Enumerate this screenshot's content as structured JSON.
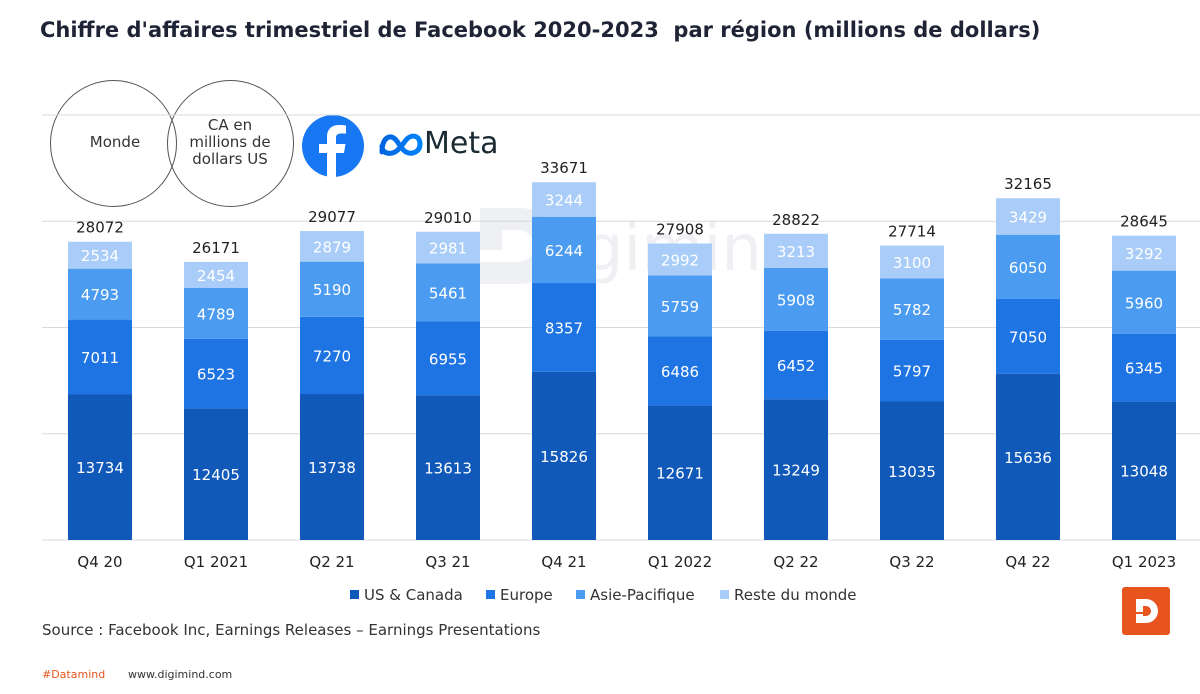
{
  "title": "Chiffre d'affaires trimestriel de Facebook 2020-2023  par région (millions de dollars)",
  "circles": {
    "left_label": "Monde",
    "right_label": [
      "CA en",
      "millions de",
      "dollars US"
    ]
  },
  "logos": {
    "facebook_icon": "facebook-f-icon",
    "meta_icon": "meta-infinity-icon",
    "meta_word": "Meta",
    "watermark": "digimind"
  },
  "source": "Source :  Facebook Inc, Earnings Releases – Earnings Presentations",
  "footer": {
    "hashtag": "#Datamind",
    "website": "www.digimind.com",
    "brand_icon": "digimind-logo-icon"
  },
  "chart_data": {
    "type": "bar",
    "stacked": true,
    "categories": [
      "Q4 20",
      "Q1 2021",
      "Q2 21",
      "Q3 21",
      "Q4 21",
      "Q1 2022",
      "Q2 22",
      "Q3 22",
      "Q4 22",
      "Q1 2023"
    ],
    "series": [
      {
        "name": "US & Canada",
        "color": "#1059b9",
        "values": [
          13734,
          12405,
          13738,
          13613,
          15826,
          12671,
          13249,
          13035,
          15636,
          13048
        ]
      },
      {
        "name": "Europe",
        "color": "#1e74e3",
        "values": [
          7011,
          6523,
          7270,
          6955,
          8357,
          6486,
          6452,
          5797,
          7050,
          6345
        ]
      },
      {
        "name": "Asie-Pacifique",
        "color": "#4b9bf0",
        "values": [
          4793,
          4789,
          5190,
          5461,
          6244,
          5759,
          5908,
          5782,
          6050,
          5960
        ]
      },
      {
        "name": "Reste du monde",
        "color": "#a9cdf8",
        "values": [
          2534,
          2454,
          2879,
          2981,
          3244,
          2992,
          3213,
          3100,
          3429,
          3292
        ]
      }
    ],
    "totals": [
      28072,
      26171,
      29077,
      29010,
      33671,
      27908,
      28822,
      27714,
      32165,
      28645
    ],
    "ylim": [
      0,
      40000
    ],
    "gridlines": [
      0,
      10000,
      20000,
      30000,
      40000
    ],
    "grid": true,
    "legend_position": "bottom",
    "xlabel": "",
    "ylabel": ""
  }
}
